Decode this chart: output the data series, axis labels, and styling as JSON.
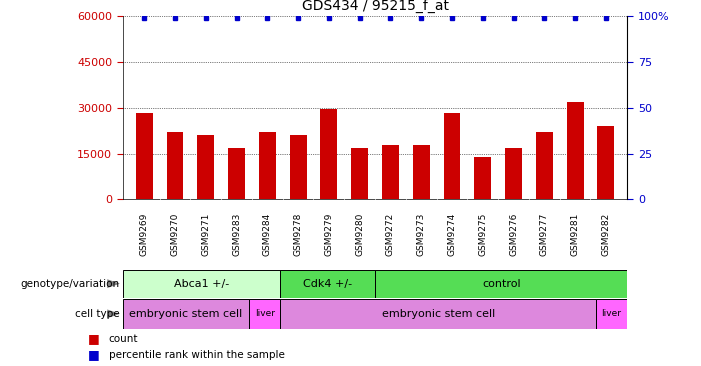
{
  "title": "GDS434 / 95215_f_at",
  "samples": [
    "GSM9269",
    "GSM9270",
    "GSM9271",
    "GSM9283",
    "GSM9284",
    "GSM9278",
    "GSM9279",
    "GSM9280",
    "GSM9272",
    "GSM9273",
    "GSM9274",
    "GSM9275",
    "GSM9276",
    "GSM9277",
    "GSM9281",
    "GSM9282"
  ],
  "counts": [
    28500,
    22000,
    21000,
    17000,
    22000,
    21000,
    29500,
    17000,
    18000,
    18000,
    28500,
    14000,
    17000,
    22000,
    32000,
    24000
  ],
  "percentile_ranks": [
    99,
    99,
    99,
    99,
    99,
    99,
    99,
    99,
    99,
    99,
    99,
    99,
    99,
    99,
    99,
    99
  ],
  "ylim": [
    0,
    60000
  ],
  "yticks": [
    0,
    15000,
    30000,
    45000,
    60000
  ],
  "ytick_labels": [
    "0",
    "15000",
    "30000",
    "45000",
    "60000"
  ],
  "y2ticks": [
    0,
    25,
    50,
    75,
    100
  ],
  "y2tick_labels": [
    "0",
    "25",
    "50",
    "75",
    "100%"
  ],
  "bar_color": "#cc0000",
  "dot_color": "#0000cc",
  "genotype_groups": [
    {
      "label": "Abca1 +/-",
      "start": 0,
      "end": 5,
      "color": "#ccffcc"
    },
    {
      "label": "Cdk4 +/-",
      "start": 5,
      "end": 8,
      "color": "#55dd55"
    },
    {
      "label": "control",
      "start": 8,
      "end": 16,
      "color": "#55dd55"
    }
  ],
  "celltype_groups": [
    {
      "label": "embryonic stem cell",
      "start": 0,
      "end": 4,
      "color": "#dd88dd"
    },
    {
      "label": "liver",
      "start": 4,
      "end": 5,
      "color": "#ff66ff"
    },
    {
      "label": "embryonic stem cell",
      "start": 5,
      "end": 15,
      "color": "#dd88dd"
    },
    {
      "label": "liver",
      "start": 15,
      "end": 16,
      "color": "#ff66ff"
    }
  ],
  "tick_color_left": "#cc0000",
  "tick_color_right": "#0000cc",
  "background_color": "#ffffff",
  "sample_bg_color": "#cccccc",
  "geno_label": "genotype/variation",
  "cell_label": "cell type"
}
